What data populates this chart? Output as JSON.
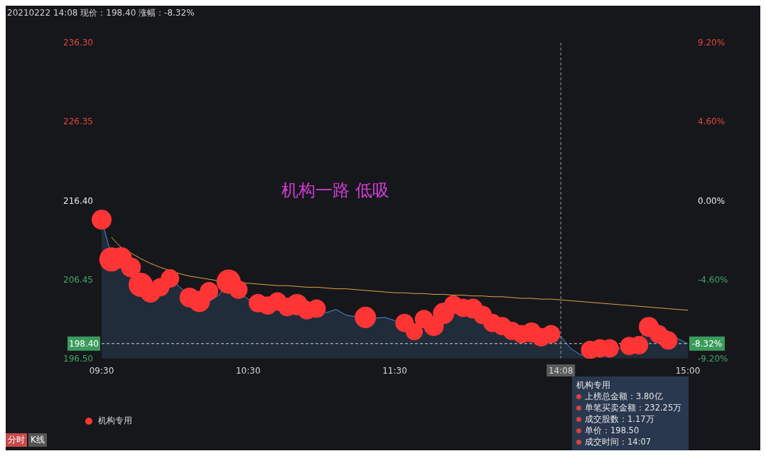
{
  "chart_data": {
    "type": "line",
    "title": "20210222 14:08 现价：198.40 涨幅：-8.32%",
    "categories": [
      "09:30",
      null,
      null,
      null,
      null,
      null,
      null,
      null,
      null,
      null,
      null,
      null,
      null,
      null,
      null,
      "10:30",
      null,
      null,
      null,
      null,
      null,
      null,
      null,
      null,
      null,
      null,
      null,
      null,
      null,
      null,
      "11:30",
      null,
      null,
      null,
      null,
      null,
      null,
      null,
      null,
      null,
      null,
      null,
      null,
      null,
      null,
      null,
      null,
      "14:08",
      null,
      null,
      null,
      null,
      null,
      null,
      null,
      null,
      null,
      null,
      null,
      null,
      "15:00"
    ],
    "series": [
      {
        "type": "area",
        "color": "#4a8fd8",
        "values": [
          214.0,
          209.5,
          209.0,
          208.0,
          206.0,
          204.9,
          205.5,
          206.8,
          205.5,
          204.5,
          204.3,
          203.7,
          204.5,
          206.3,
          205.0,
          204.0,
          203.5,
          203.4,
          203.7,
          203.2,
          203.4,
          203.8,
          203.1,
          202.3,
          202.7,
          202.0,
          201.8,
          202.0,
          201.6,
          201.7,
          201.3,
          200.2,
          200.0,
          201.0,
          200.5,
          202.0,
          203.0,
          203.1,
          202.8,
          202.7,
          201.8,
          201.0,
          200.6,
          200.1,
          199.6,
          199.8,
          199.4,
          199.3,
          197.8,
          197.0,
          197.2,
          197.5,
          197.6,
          197.8,
          198.2,
          198.8,
          200.6,
          199.8,
          200.0,
          199.0,
          198.4
        ]
      },
      {
        "color": "#e0a445",
        "values": [
          null,
          211.8,
          210.5,
          209.8,
          209.1,
          208.5,
          208.0,
          null,
          207.2,
          206.9,
          206.7,
          206.5,
          206.3,
          null,
          null,
          206.0,
          205.9,
          205.8,
          205.7,
          205.7,
          205.6,
          205.5,
          205.5,
          205.4,
          205.3,
          205.3,
          205.2,
          205.1,
          205.0,
          204.9,
          204.8,
          204.8,
          204.7,
          204.7,
          204.6,
          204.6,
          204.5,
          204.5,
          204.4,
          204.4,
          204.3,
          204.3,
          204.2,
          204.1,
          204.1,
          204.0,
          204.0,
          203.9,
          203.8,
          203.7,
          203.6,
          203.5,
          203.4,
          203.3,
          203.2,
          203.1,
          203.0,
          202.9,
          202.8,
          202.7,
          202.6
        ]
      },
      {
        "type": "bubble",
        "name": "机构专用",
        "color": "#ff3535",
        "values": [
          214.0,
          209.0,
          209.2,
          208.0,
          205.8,
          204.8,
          205.5,
          206.6,
          null,
          204.2,
          203.7,
          205.0,
          null,
          206.2,
          205.2,
          null,
          203.5,
          203.2,
          203.7,
          203.0,
          203.3,
          202.6,
          202.8,
          null,
          null,
          null,
          null,
          201.7,
          null,
          null,
          null,
          201.0,
          199.9,
          201.5,
          200.6,
          202.2,
          203.3,
          202.9,
          202.8,
          202.0,
          201.0,
          200.6,
          200.0,
          199.6,
          199.8,
          199.2,
          199.6,
          null,
          null,
          null,
          197.6,
          197.8,
          197.8,
          null,
          198.1,
          198.2,
          200.5,
          199.6,
          198.8,
          null,
          null
        ],
        "sizes": [
          0.68,
          1,
          0.78,
          0.68,
          1,
          0.68,
          0.58,
          0.58,
          null,
          0.68,
          0.78,
          0.58,
          null,
          1,
          0.58,
          null,
          0.58,
          0.58,
          0.58,
          0.58,
          0.78,
          0.58,
          0.58,
          null,
          null,
          null,
          null,
          0.78,
          null,
          null,
          null,
          0.58,
          0.5,
          0.58,
          0.68,
          0.78,
          0.58,
          0.58,
          0.68,
          0.58,
          0.58,
          0.58,
          0.58,
          0.58,
          0.68,
          0.58,
          0.58,
          null,
          null,
          null,
          0.58,
          0.58,
          0.58,
          null,
          0.58,
          0.58,
          0.68,
          0.58,
          0.58,
          null,
          null
        ]
      }
    ],
    "ylim": [
      196.5,
      236.3
    ],
    "yticks": [
      {
        "value": 196.5,
        "label": "196.50"
      },
      206.45,
      {
        "value": 216.4,
        "label": "216.40"
      },
      226.35,
      {
        "value": 236.3,
        "label": "236.30"
      }
    ],
    "y2lim": [
      -9.2,
      9.2
    ],
    "y2ticks": [
      {
        "value": -9.2,
        "label": "-9.20%"
      },
      {
        "value": -4.6,
        "label": "-4.60%"
      },
      {
        "value": 0,
        "label": "0.00%"
      },
      {
        "value": 4.6,
        "label": "4.60%"
      },
      {
        "value": 9.2,
        "label": "9.20%"
      }
    ],
    "ref_lines": [
      {
        "axis": "y",
        "value": 198.4,
        "label": "198.40",
        "color": "#cfcfcf",
        "line_style": "dashed"
      },
      {
        "axis": "x",
        "value": "14:08",
        "label": null,
        "color": "#9a9a9a",
        "line_style": "dashed"
      }
    ],
    "annotations": [
      "机构一路 低吸",
      "机构专用",
      "上榜总金额：3.80亿",
      "单笔买卖金额：232.25万",
      "成交股数：1.17万",
      "单价：198.50",
      "成交时间：14:07",
      "分时",
      "K线",
      "-8.32%"
    ],
    "legend": "bottom left"
  }
}
